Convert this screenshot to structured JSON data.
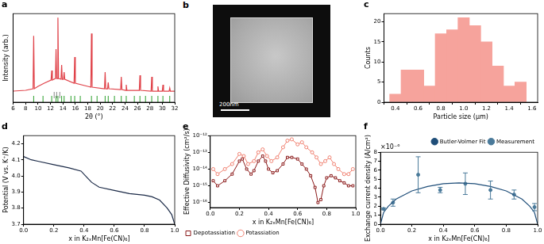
{
  "chart_data": [
    {
      "type": "line",
      "title": "a",
      "x_label": "2θ (°)",
      "y_label": "Intensity (arb.)",
      "xlim": [
        6,
        32
      ],
      "xticks": [
        6,
        8,
        10,
        12,
        14,
        16,
        18,
        20,
        22,
        24,
        26,
        28,
        30,
        32
      ],
      "ylim": [
        -0.12,
        1.0
      ],
      "grid": false,
      "tick_labels": "x",
      "series": [
        {
          "color": "#e0434a",
          "line_style": "solid",
          "x": [
            6,
            8,
            9.2,
            9.3,
            9.4,
            10,
            11,
            12.1,
            12.2,
            12.3,
            12.8,
            12.9,
            13.0,
            13.1,
            13.2,
            13.3,
            13.7,
            13.8,
            13.9,
            14.1,
            14.2,
            14.3,
            15.8,
            15.9,
            16.0,
            18.0,
            18.5,
            18.6,
            18.7,
            20.7,
            20.8,
            20.9,
            21.2,
            21.3,
            21.4,
            23.3,
            23.4,
            23.5,
            24.1,
            24.2,
            24.3,
            26.3,
            26.4,
            26.5,
            28.2,
            28.3,
            28.4,
            29.2,
            29.3,
            29.4,
            30.0,
            30.1,
            30.2,
            31.1,
            31.2,
            31.3,
            32
          ],
          "values": [
            0.02,
            0.03,
            0.05,
            0.72,
            0.05,
            0.08,
            0.12,
            0.16,
            0.28,
            0.16,
            0.18,
            0.55,
            0.18,
            0.18,
            0.95,
            0.18,
            0.17,
            0.35,
            0.17,
            0.17,
            0.26,
            0.17,
            0.12,
            0.45,
            0.12,
            0.08,
            0.07,
            0.75,
            0.07,
            0.05,
            0.26,
            0.05,
            0.05,
            0.13,
            0.05,
            0.04,
            0.2,
            0.04,
            0.03,
            0.1,
            0.03,
            0.03,
            0.22,
            0.03,
            0.02,
            0.2,
            0.02,
            0.02,
            0.08,
            0.02,
            0.02,
            0.1,
            0.02,
            0.02,
            0.06,
            0.02,
            0.02
          ]
        },
        {
          "type": "scatter",
          "color": "#888888",
          "marker": "line",
          "line_style": "none",
          "x": [
            12.6,
            13.0,
            13.5
          ],
          "values": [
            -0.03,
            -0.03,
            -0.03
          ]
        },
        {
          "type": "scatter",
          "color": "#2ca02c",
          "marker": "line",
          "line_style": "none",
          "x": [
            9.3,
            10.8,
            12.2,
            12.9,
            13.2,
            13.8,
            14.2,
            15.3,
            15.9,
            16.8,
            18.6,
            19.5,
            20.8,
            21.3,
            22.3,
            23.4,
            24.2,
            25.5,
            26.4,
            27.3,
            28.3,
            29.3,
            30.1,
            31.2
          ],
          "values": [
            -0.08,
            -0.08,
            -0.08,
            -0.08,
            -0.08,
            -0.08,
            -0.08,
            -0.08,
            -0.08,
            -0.08,
            -0.08,
            -0.08,
            -0.08,
            -0.08,
            -0.08,
            -0.08,
            -0.08,
            -0.08,
            -0.08,
            -0.08,
            -0.08,
            -0.08,
            -0.08,
            -0.08
          ]
        }
      ]
    },
    {
      "type": "image",
      "title": "b",
      "annotations": [
        "200nm"
      ]
    },
    {
      "type": "histogram",
      "title": "c",
      "x_label": "Particle size (μm)",
      "y_label": "Counts",
      "xlim": [
        0.3,
        1.65
      ],
      "xticks": [
        0.4,
        0.6,
        0.8,
        {
          "value": 1,
          "label": "1.0"
        },
        1.2,
        1.4,
        1.6
      ],
      "ylim": [
        0,
        22
      ],
      "yticks": [
        0,
        5,
        10,
        15,
        20
      ],
      "grid": false,
      "color": "#f6a39c",
      "bins": [
        0.35,
        0.45,
        0.55,
        0.65,
        0.75,
        0.85,
        0.95,
        1.05,
        1.15,
        1.25,
        1.35,
        1.45,
        1.55
      ],
      "counts": [
        2,
        8,
        8,
        4,
        17,
        18,
        21,
        19,
        15,
        9,
        4,
        5
      ]
    },
    {
      "type": "line",
      "title": "d",
      "x_label": "x in K₂ₓMn[Fe(CN)₆]",
      "y_label": "Potential (V vs. K⁺/K)",
      "xlim": [
        0,
        1
      ],
      "xticks": [
        {
          "value": 0,
          "label": "0.0"
        },
        0.2,
        0.4,
        0.6,
        0.8,
        {
          "value": 1,
          "label": "1.0"
        }
      ],
      "ylim": [
        3.7,
        4.25
      ],
      "yticks": [
        3.7,
        3.8,
        3.9,
        {
          "value": 4,
          "label": "4.0"
        },
        4.1,
        4.2
      ],
      "grid": false,
      "series": [
        {
          "color": "#1b2a47",
          "line_style": "solid",
          "x": [
            0,
            0.05,
            0.1,
            0.2,
            0.3,
            0.38,
            0.42,
            0.45,
            0.5,
            0.6,
            0.7,
            0.8,
            0.85,
            0.9,
            0.95,
            0.98,
            1.0
          ],
          "values": [
            4.12,
            4.1,
            4.09,
            4.07,
            4.05,
            4.03,
            3.99,
            3.96,
            3.93,
            3.91,
            3.89,
            3.88,
            3.87,
            3.85,
            3.8,
            3.76,
            3.7
          ]
        }
      ]
    },
    {
      "type": "line",
      "title": "e",
      "x_label": "x in K₂ₓMn[Fe(CN)₆]",
      "y_label": "Effective Diffusivity (cm²/s)",
      "log": "y",
      "legend": "lower left",
      "grid": false,
      "xlim": [
        0,
        1
      ],
      "xticks": [
        {
          "value": 0,
          "label": "0.0"
        },
        0.2,
        0.4,
        0.6,
        0.8,
        {
          "value": 1,
          "label": "1.0"
        }
      ],
      "ylim": [
        5e-17,
        1e-12
      ],
      "yticks": [
        {
          "value": 1e-16,
          "label": "10⁻¹⁶"
        },
        {
          "value": 1e-15,
          "label": "10⁻¹⁵"
        },
        {
          "value": 1e-14,
          "label": "10⁻¹⁴"
        },
        {
          "value": 1e-13,
          "label": "10⁻¹³"
        },
        {
          "value": 1e-12,
          "label": "10⁻¹²"
        }
      ],
      "series": [
        {
          "name": "Depotassiation",
          "color": "#8b1a1a",
          "marker": "open_square",
          "line_style": "solid",
          "x": [
            0.02,
            0.05,
            0.1,
            0.15,
            0.2,
            0.22,
            0.25,
            0.28,
            0.3,
            0.33,
            0.36,
            0.38,
            0.4,
            0.43,
            0.46,
            0.5,
            0.53,
            0.56,
            0.6,
            0.63,
            0.66,
            0.69,
            0.72,
            0.74,
            0.76,
            0.78,
            0.8,
            0.83,
            0.86,
            0.89,
            0.92,
            0.95,
            0.98
          ],
          "values": [
            2e-15,
            1e-15,
            2e-15,
            5e-15,
            3e-14,
            4e-14,
            1e-14,
            5e-15,
            8e-15,
            3e-14,
            6e-14,
            3e-14,
            1e-14,
            6e-15,
            8e-15,
            2e-14,
            5e-14,
            5e-14,
            4e-14,
            2e-14,
            1e-14,
            4e-15,
            8e-16,
            1e-16,
            1.5e-16,
            1e-15,
            3e-15,
            4e-15,
            3e-15,
            2e-15,
            1.5e-15,
            1e-15,
            1e-15
          ]
        },
        {
          "name": "Potassiation",
          "color": "#f08070",
          "marker": "open_circle",
          "line_style": "solid",
          "x": [
            0.02,
            0.05,
            0.1,
            0.15,
            0.2,
            0.23,
            0.26,
            0.3,
            0.33,
            0.36,
            0.39,
            0.42,
            0.46,
            0.5,
            0.53,
            0.56,
            0.6,
            0.63,
            0.66,
            0.7,
            0.73,
            0.76,
            0.79,
            0.82,
            0.85,
            0.88,
            0.92,
            0.95,
            0.98
          ],
          "values": [
            1e-14,
            5e-15,
            1e-14,
            2e-14,
            8e-14,
            6e-14,
            2e-14,
            3e-14,
            1e-13,
            1.5e-13,
            6e-14,
            3e-14,
            5e-14,
            2e-13,
            5e-13,
            6e-13,
            3e-13,
            4e-13,
            2e-13,
            1e-13,
            5e-14,
            2e-14,
            3e-14,
            5e-14,
            2e-14,
            1e-14,
            5e-15,
            5e-15,
            1e-14
          ]
        }
      ]
    },
    {
      "type": "line",
      "title": "f",
      "x_label": "x in K₂ₓMn[Fe(CN)₆]",
      "y_label": "Exchange current density (A/cm²)",
      "annotations": [
        "×10⁻⁶"
      ],
      "legend": "upper right",
      "grid": false,
      "xlim": [
        0,
        1
      ],
      "xticks": [
        {
          "value": 0,
          "label": "0.0"
        },
        0.2,
        0.4,
        0.6,
        0.8,
        {
          "value": 1,
          "label": "1.0"
        }
      ],
      "ylim": [
        0,
        8e-06
      ],
      "yticks": [
        0,
        {
          "value": 1e-06,
          "label": "1"
        },
        {
          "value": 2e-06,
          "label": "2"
        },
        {
          "value": 3e-06,
          "label": "3"
        },
        {
          "value": 4e-06,
          "label": "4"
        },
        {
          "value": 5e-06,
          "label": "5"
        },
        {
          "value": 6e-06,
          "label": "6"
        },
        {
          "value": 7e-06,
          "label": "7"
        },
        {
          "value": 8e-06,
          "label": "8"
        }
      ],
      "series": [
        {
          "name": "Butler-Volmer Fit",
          "color": "#1f4e79",
          "line_style": "solid",
          "x": [
            0,
            0.02,
            0.05,
            0.1,
            0.2,
            0.3,
            0.4,
            0.5,
            0.6,
            0.7,
            0.8,
            0.9,
            0.95,
            0.98,
            1.0
          ],
          "values": [
            0,
            1.3e-06,
            2e-06,
            2.8e-06,
            3.7e-06,
            4.2e-06,
            4.5e-06,
            4.6e-06,
            4.5e-06,
            4.2e-06,
            3.7e-06,
            2.8e-06,
            2e-06,
            1.3e-06,
            0
          ]
        },
        {
          "name": "Measurement",
          "type": "scatter",
          "color": "#4a7a9a",
          "marker": "circle",
          "line_style": "none",
          "x": [
            0.02,
            0.08,
            0.24,
            0.38,
            0.54,
            0.7,
            0.85,
            0.98
          ],
          "values": [
            1.7e-06,
            2.4e-06,
            5.5e-06,
            3.8e-06,
            4.5e-06,
            3.8e-06,
            3.3e-06,
            1.9e-06
          ],
          "errors": [
            1e-07,
            4e-07,
            2e-06,
            3e-07,
            1.2e-06,
            1e-06,
            5e-07,
            4e-07
          ]
        }
      ]
    }
  ]
}
